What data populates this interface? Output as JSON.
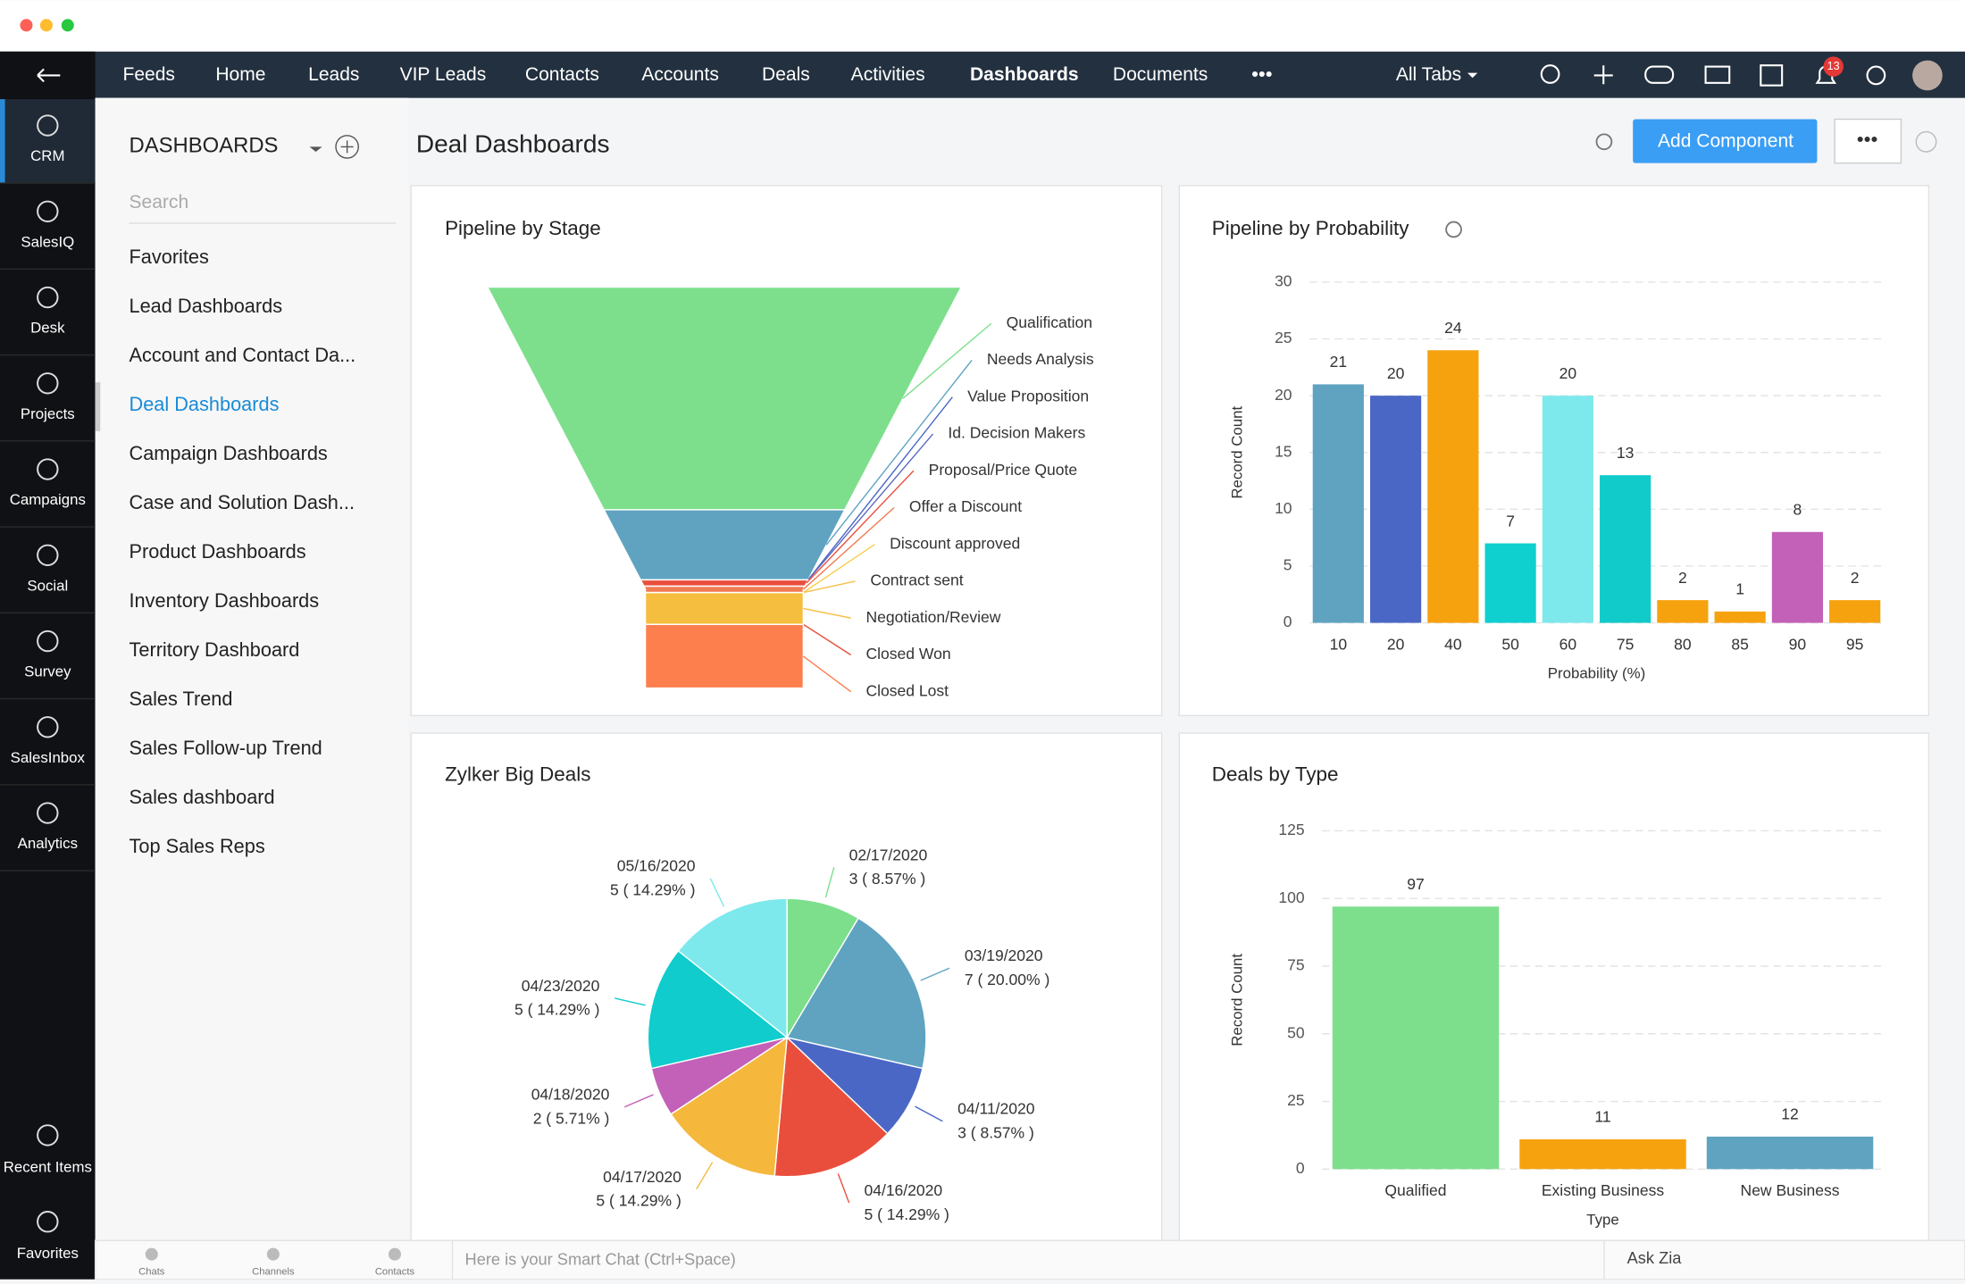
{
  "nav": {
    "tabs": [
      "Feeds",
      "Home",
      "Leads",
      "VIP Leads",
      "Contacts",
      "Accounts",
      "Deals",
      "Activities",
      "Dashboards",
      "Documents"
    ],
    "all_tabs": "All Tabs",
    "notifications": "13"
  },
  "rail": {
    "items": [
      "CRM",
      "SalesIQ",
      "Desk",
      "Projects",
      "Campaigns",
      "Social",
      "Survey",
      "SalesInbox",
      "Analytics"
    ],
    "bottom_items": [
      "Recent Items",
      "Favorites"
    ]
  },
  "sidebar": {
    "title": "DASHBOARDS",
    "search_placeholder": "Search",
    "items": [
      "Favorites",
      "Lead Dashboards",
      "Account and Contact Da...",
      "Deal Dashboards",
      "Campaign Dashboards",
      "Case and Solution Dash...",
      "Product Dashboards",
      "Inventory Dashboards",
      "Territory Dashboard",
      "Sales Trend",
      "Sales Follow-up Trend",
      "Sales dashboard",
      "Top Sales Reps"
    ]
  },
  "header": {
    "title": "Deal Dashboards",
    "button": "Add Component"
  },
  "chat_bar": {
    "tabs": [
      "Chats",
      "Channels",
      "Contacts"
    ],
    "placeholder": "Here is your Smart Chat (Ctrl+Space)",
    "ask_zia": "Ask Zia"
  },
  "chart_data": [
    {
      "type": "funnel",
      "title": "Pipeline by Stage",
      "categories": [
        "Qualification",
        "Needs Analysis",
        "Value Proposition",
        "Id. Decision Makers",
        "Proposal/Price Quote",
        "Offer a Discount",
        "Discount approved",
        "Contract sent",
        "Negotiation/Review",
        "Closed Won",
        "Closed Lost"
      ],
      "values": [
        35,
        11,
        0,
        0,
        1,
        1,
        0,
        0,
        5,
        0,
        10
      ],
      "colors": [
        "#7ddf8c",
        "#5fa3c1",
        "#4b67c6",
        "#5c6bc0",
        "#e94e3c",
        "#f07b52",
        "#f5d04a",
        "#f5c04a",
        "#f5be3e",
        "#e5533d",
        "#fd7f4e"
      ]
    },
    {
      "type": "bar",
      "title": "Pipeline by Probability",
      "x_label": "Probability (%)",
      "y_label": "Record Count",
      "categories": [
        "10",
        "20",
        "40",
        "50",
        "60",
        "75",
        "80",
        "85",
        "90",
        "95"
      ],
      "values": [
        21,
        20,
        24,
        7,
        20,
        13,
        2,
        1,
        8,
        2
      ],
      "colors": [
        "#5fa3c1",
        "#4b67c6",
        "#f6a20f",
        "#10cfcf",
        "#7ee9ec",
        "#10cbc9",
        "#f6a20f",
        "#f6a20f",
        "#c360b8",
        "#f6a20f"
      ],
      "ylim": [
        0,
        30
      ],
      "yticks": [
        0,
        5,
        10,
        15,
        20,
        25,
        30
      ],
      "grid": true
    },
    {
      "type": "pie",
      "title": "Zylker Big Deals",
      "categories": [
        "02/17/2020",
        "03/19/2020",
        "04/11/2020",
        "04/16/2020",
        "04/17/2020",
        "04/18/2020",
        "04/23/2020",
        "05/16/2020"
      ],
      "values": [
        3,
        7,
        3,
        5,
        5,
        2,
        5,
        5
      ],
      "value_labels": [
        "3 ( 8.57% )",
        "7 ( 20.00% )",
        "3 ( 8.57% )",
        "5 ( 14.29% )",
        "5 ( 14.29% )",
        "2 ( 5.71% )",
        "5 ( 14.29% )",
        "5 ( 14.29% )"
      ],
      "colors": [
        "#7ddf8c",
        "#5fa3c1",
        "#4b67c6",
        "#e94e3c",
        "#f5b83d",
        "#c360b8",
        "#10cccc",
        "#7ee9ec"
      ]
    },
    {
      "type": "bar",
      "title": "Deals by Type",
      "x_label": "Type",
      "y_label": "Record Count",
      "categories": [
        "Qualified",
        "Existing Business",
        "New Business"
      ],
      "values": [
        97,
        11,
        12
      ],
      "colors": [
        "#7ddf8c",
        "#f6a20f",
        "#5fa3c1"
      ],
      "ylim": [
        0,
        125
      ],
      "yticks": [
        0,
        25,
        50,
        75,
        100,
        125
      ],
      "grid": true
    }
  ]
}
